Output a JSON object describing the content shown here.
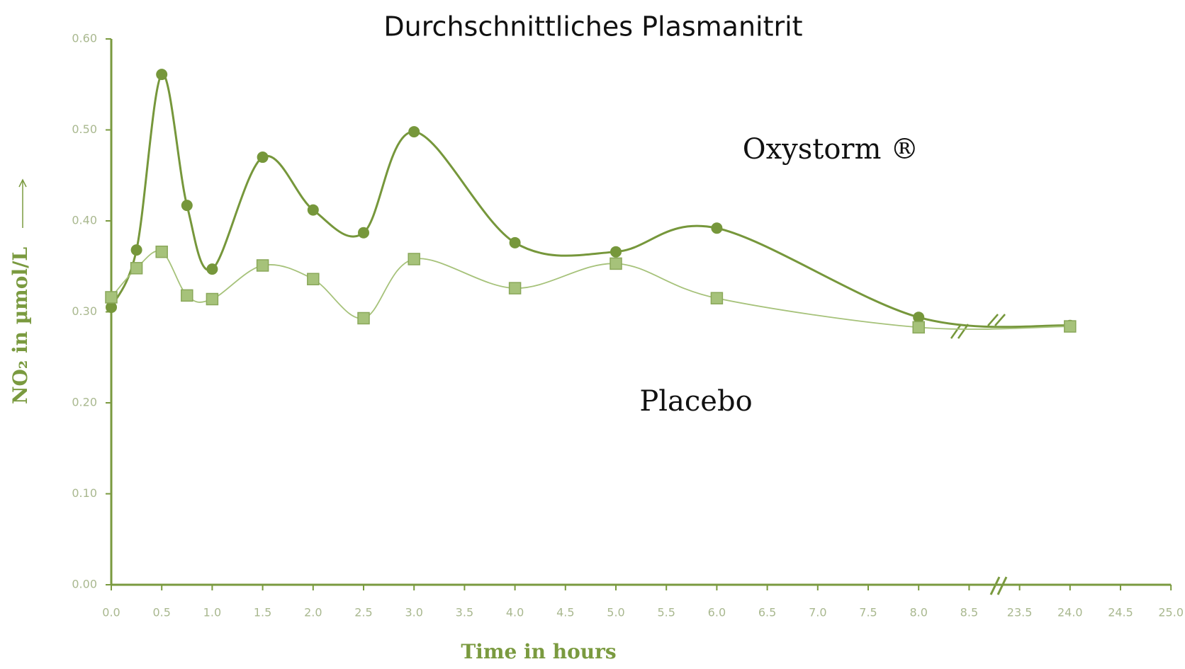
{
  "chart_data": {
    "type": "line",
    "title": "Durchschnittliches Plasmanitrit",
    "x_label": "Time in hours",
    "y_label": "NO₂ in µmol/L",
    "x": [
      0,
      0.25,
      0.5,
      0.75,
      1,
      1.5,
      2,
      2.5,
      3,
      4,
      5,
      6,
      8,
      24
    ],
    "series": [
      {
        "name": "Oxystorm ®",
        "color": "#76973b",
        "marker": "circle",
        "values": [
          0.305,
          0.368,
          0.561,
          0.417,
          0.347,
          0.47,
          0.412,
          0.387,
          0.498,
          0.376,
          0.366,
          0.392,
          0.294,
          0.285
        ]
      },
      {
        "name": "Placebo",
        "color": "#a6c27a",
        "marker": "square",
        "values": [
          0.316,
          0.348,
          0.366,
          0.318,
          0.314,
          0.351,
          0.336,
          0.293,
          0.358,
          0.326,
          0.353,
          0.315,
          0.283,
          0.284
        ]
      }
    ],
    "ylim": [
      0,
      0.6
    ],
    "yticks": [
      {
        "value": 0,
        "label": "0.00"
      },
      {
        "value": 0.1,
        "label": "0.10"
      },
      {
        "value": 0.2,
        "label": "0.20"
      },
      {
        "value": 0.3,
        "label": "0.30"
      },
      {
        "value": 0.4,
        "label": "0.40"
      },
      {
        "value": 0.5,
        "label": "0.50"
      },
      {
        "value": 0.6,
        "label": "0.60"
      }
    ],
    "xticks": [
      {
        "value": 0,
        "label": "0.0"
      },
      {
        "value": 0.5,
        "label": "0.5"
      },
      {
        "value": 1,
        "label": "1.0"
      },
      {
        "value": 1.5,
        "label": "1.5"
      },
      {
        "value": 2,
        "label": "2.0"
      },
      {
        "value": 2.5,
        "label": "2.5"
      },
      {
        "value": 3,
        "label": "3.0"
      },
      {
        "value": 3.5,
        "label": "3.5"
      },
      {
        "value": 4,
        "label": "4.0"
      },
      {
        "value": 4.5,
        "label": "4.5"
      },
      {
        "value": 5,
        "label": "5.0"
      },
      {
        "value": 5.5,
        "label": "5.5"
      },
      {
        "value": 6,
        "label": "6.0"
      },
      {
        "value": 6.5,
        "label": "6.5"
      },
      {
        "value": 7,
        "label": "7.0"
      },
      {
        "value": 7.5,
        "label": "7.5"
      },
      {
        "value": 8,
        "label": "8.0"
      },
      {
        "value": 8.5,
        "label": "8.5"
      },
      {
        "value": 23.5,
        "label": "23.5"
      },
      {
        "value": 24,
        "label": "24.0"
      },
      {
        "value": 24.5,
        "label": "24.5"
      },
      {
        "value": 25,
        "label": "25.0"
      }
    ],
    "axis_color": "#7a9a3f"
  }
}
